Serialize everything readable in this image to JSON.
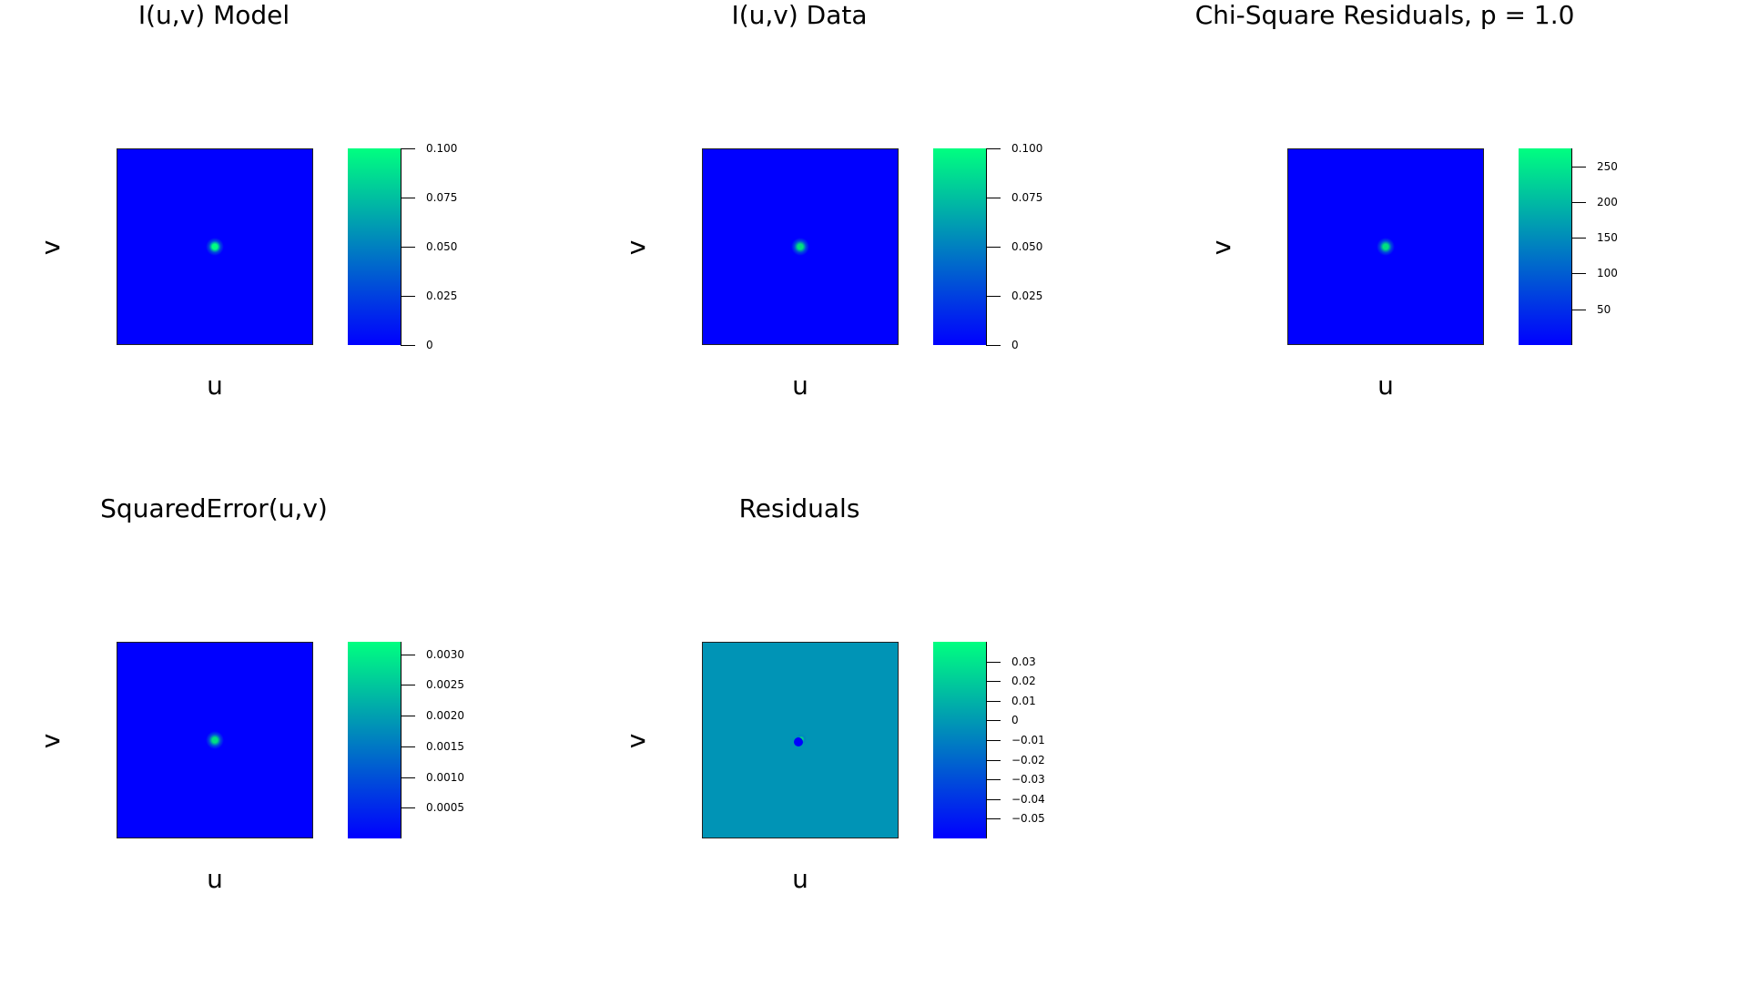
{
  "chart_data": [
    {
      "type": "heatmap",
      "title": "I(u,v) Model",
      "xlabel": "u",
      "ylabel": "v",
      "colormap": "winter",
      "background_color": "#0000ff",
      "peak_color": "#00ff80",
      "peak_location": "center",
      "colorbar": {
        "range": [
          0,
          0.1
        ],
        "ticks": [
          {
            "value": 0.1,
            "label": "0.100"
          },
          {
            "value": 0.075,
            "label": "0.075"
          },
          {
            "value": 0.05,
            "label": "0.050"
          },
          {
            "value": 0.025,
            "label": "0.025"
          },
          {
            "value": 0,
            "label": "0"
          }
        ]
      }
    },
    {
      "type": "heatmap",
      "title": "I(u,v) Data",
      "xlabel": "u",
      "ylabel": "v",
      "colormap": "winter",
      "background_color": "#0000ff",
      "peak_color": "#00e080",
      "peak_location": "center",
      "colorbar": {
        "range": [
          0,
          0.1
        ],
        "ticks": [
          {
            "value": 0.1,
            "label": "0.100"
          },
          {
            "value": 0.075,
            "label": "0.075"
          },
          {
            "value": 0.05,
            "label": "0.050"
          },
          {
            "value": 0.025,
            "label": "0.025"
          },
          {
            "value": 0,
            "label": "0"
          }
        ]
      }
    },
    {
      "type": "heatmap",
      "title": "Chi-Square Residuals, p = 1.0",
      "xlabel": "u",
      "ylabel": "v",
      "colormap": "winter",
      "background_color": "#0000ff",
      "peak_color": "#00e080",
      "peak_location": "center",
      "colorbar": {
        "range": [
          0,
          275
        ],
        "ticks": [
          {
            "value": 250,
            "label": "250"
          },
          {
            "value": 200,
            "label": "200"
          },
          {
            "value": 150,
            "label": "150"
          },
          {
            "value": 100,
            "label": "100"
          },
          {
            "value": 50,
            "label": "50"
          }
        ]
      }
    },
    {
      "type": "heatmap",
      "title": "SquaredError(u,v)",
      "xlabel": "u",
      "ylabel": "v",
      "colormap": "winter",
      "background_color": "#0000ff",
      "peak_color": "#00e080",
      "peak_location": "center",
      "colorbar": {
        "range": [
          0,
          0.0032
        ],
        "ticks": [
          {
            "value": 0.003,
            "label": "0.0030"
          },
          {
            "value": 0.0025,
            "label": "0.0025"
          },
          {
            "value": 0.002,
            "label": "0.0020"
          },
          {
            "value": 0.0015,
            "label": "0.0015"
          },
          {
            "value": 0.001,
            "label": "0.0010"
          },
          {
            "value": 0.0005,
            "label": "0.0005"
          }
        ]
      }
    },
    {
      "type": "heatmap",
      "title": "Residuals",
      "xlabel": "u",
      "ylabel": "v",
      "colormap": "winter",
      "background_color": "#0094b6",
      "peak_color": "#00e080",
      "trough_color": "#0000ff",
      "peak_location": "center",
      "colorbar": {
        "range": [
          -0.06,
          0.04
        ],
        "ticks": [
          {
            "value": 0.03,
            "label": "0.03"
          },
          {
            "value": 0.02,
            "label": "0.02"
          },
          {
            "value": 0.01,
            "label": "0.01"
          },
          {
            "value": 0,
            "label": "0"
          },
          {
            "value": -0.01,
            "label": "−0.01"
          },
          {
            "value": -0.02,
            "label": "−0.02"
          },
          {
            "value": -0.03,
            "label": "−0.03"
          },
          {
            "value": -0.04,
            "label": "−0.04"
          },
          {
            "value": -0.05,
            "label": "−0.05"
          }
        ]
      }
    }
  ]
}
